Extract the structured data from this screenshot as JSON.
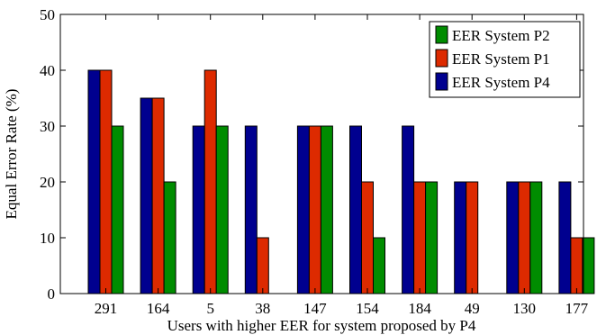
{
  "chart_data": {
    "type": "bar",
    "title": "",
    "xlabel": "Users with higher EER for system proposed by P4",
    "ylabel": "Equal Error Rate (%)",
    "ylim": [
      0,
      50
    ],
    "yticks": [
      0,
      10,
      20,
      30,
      40,
      50
    ],
    "grid": false,
    "legend_position": "top-right",
    "categories": [
      "291",
      "164",
      "5",
      "38",
      "147",
      "154",
      "184",
      "49",
      "130",
      "177"
    ],
    "series": [
      {
        "name": "EER System P4",
        "color": "#00008f",
        "values": [
          40,
          35,
          30,
          30,
          30,
          30,
          30,
          20,
          20,
          20
        ]
      },
      {
        "name": "EER System P1",
        "color": "#dd2a00",
        "values": [
          40,
          35,
          40,
          10,
          30,
          20,
          20,
          20,
          20,
          10
        ]
      },
      {
        "name": "EER System P2",
        "color": "#008c00",
        "values": [
          30,
          20,
          30,
          0,
          30,
          10,
          20,
          0,
          20,
          10
        ]
      }
    ],
    "legend_order": [
      "EER System P2",
      "EER System P1",
      "EER System P4"
    ]
  }
}
